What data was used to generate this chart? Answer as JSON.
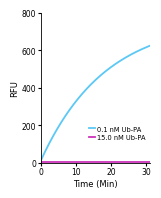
{
  "title": "",
  "xlabel": "Time (Min)",
  "ylabel": "RFU",
  "xlim": [
    0,
    31
  ],
  "ylim": [
    0,
    800
  ],
  "yticks": [
    0,
    200,
    400,
    600,
    800
  ],
  "xticks": [
    0,
    10,
    20,
    30
  ],
  "series": [
    {
      "label": "0.1 nM Ub-PA",
      "color": "#5bc8f5",
      "type": "curve",
      "a": 750,
      "b": 0.055,
      "c": 10
    },
    {
      "label": "15.0 nM Ub-PA",
      "color": "#cc33bb",
      "type": "flat",
      "value": 8
    }
  ],
  "legend_fontsize": 4.8,
  "axis_fontsize": 6.0,
  "tick_fontsize": 5.5,
  "background_color": "#ffffff",
  "line_width": 1.3
}
